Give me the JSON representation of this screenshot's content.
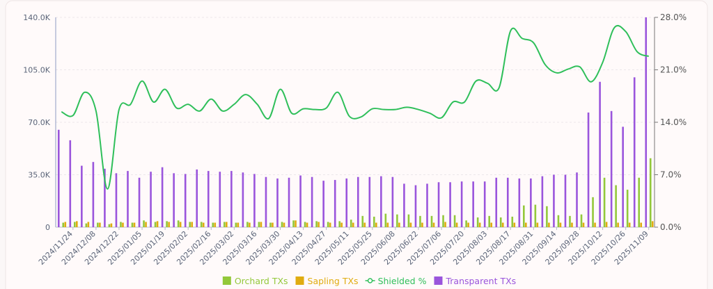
{
  "chart_data": {
    "type": "combo",
    "categories": [
      null,
      "2024/11/24",
      null,
      "2024/12/08",
      null,
      "2024/12/22",
      null,
      "2025/01/05",
      null,
      "2025/01/19",
      null,
      "2025/02/02",
      null,
      "2025/02/16",
      null,
      "2025/03/02",
      null,
      "2025/03/16",
      null,
      "2025/03/30",
      null,
      "2025/04/13",
      null,
      "2025/04/27",
      null,
      "2025/05/11",
      null,
      "2025/05/25",
      null,
      "2025/06/08",
      null,
      "2025/06/22",
      null,
      "2025/07/06",
      null,
      "2025/07/20",
      null,
      "2025/08/03",
      null,
      "2025/08/17",
      null,
      "2025/08/31",
      null,
      "2025/09/14",
      null,
      "2025/09/28",
      null,
      "2025/10/12",
      null,
      "2025/10/26",
      null,
      "2025/11/09"
    ],
    "series": [
      {
        "name": "Orchard TXs",
        "type": "bar",
        "color": "#93c83a",
        "values": [
          3000,
          3500,
          2500,
          3000,
          2000,
          3500,
          3000,
          4500,
          3500,
          4000,
          4500,
          3500,
          3500,
          3000,
          3500,
          3000,
          3500,
          3500,
          3000,
          3500,
          4500,
          3500,
          4000,
          3500,
          4000,
          5000,
          7500,
          7000,
          9000,
          8500,
          8500,
          7500,
          7500,
          8000,
          8000,
          4500,
          6500,
          7500,
          6500,
          7000,
          14500,
          15000,
          14000,
          8000,
          7500,
          8500,
          20000,
          33000,
          28000,
          25000,
          33000,
          46000
        ]
      },
      {
        "name": "Sapling TXs",
        "type": "bar",
        "color": "#e0ac10",
        "values": [
          3500,
          4000,
          3500,
          3000,
          2500,
          3000,
          3000,
          3500,
          4000,
          3500,
          3500,
          3500,
          3000,
          3000,
          3500,
          3000,
          3000,
          3500,
          3000,
          3000,
          4500,
          3000,
          3500,
          3000,
          3000,
          3000,
          3000,
          3000,
          3000,
          3000,
          3000,
          3000,
          3000,
          3500,
          3000,
          3000,
          3000,
          3000,
          3000,
          3000,
          3000,
          3000,
          3000,
          3000,
          3000,
          3000,
          3000,
          3500,
          3000,
          3000,
          3000,
          4000
        ]
      },
      {
        "name": "Shielded %",
        "type": "line",
        "axis": "y2",
        "color": "#2fbf5a",
        "values": [
          15.4,
          14.9,
          18,
          15.5,
          5.1,
          15.7,
          16.4,
          19.5,
          16.7,
          18.4,
          15.9,
          16.4,
          15.5,
          17.1,
          15.5,
          16.4,
          17.7,
          16.4,
          14.5,
          18.4,
          15.2,
          15.8,
          15.7,
          15.9,
          18,
          14.8,
          14.7,
          15.8,
          15.7,
          15.7,
          16,
          15.7,
          15.2,
          14.6,
          16.7,
          16.7,
          19.5,
          19.2,
          18.6,
          26.2,
          25.2,
          24.6,
          21.7,
          20.6,
          21.1,
          21.4,
          19.4,
          22,
          26.6,
          26.1,
          23.4,
          22.8
        ]
      },
      {
        "name": "Transparent TXs",
        "type": "bar",
        "color": "#9a55dc",
        "values": [
          65000,
          58000,
          41000,
          43500,
          39000,
          36000,
          37500,
          33000,
          37000,
          40000,
          36000,
          35500,
          38500,
          37500,
          37000,
          37500,
          36500,
          35500,
          33500,
          32500,
          33000,
          34500,
          33500,
          31000,
          31500,
          32500,
          33500,
          33500,
          34000,
          33500,
          29000,
          28000,
          29000,
          30000,
          30000,
          30500,
          30500,
          30500,
          33000,
          33000,
          32500,
          32500,
          34000,
          35000,
          35000,
          36500,
          76500,
          97000,
          77500,
          67000,
          100000,
          140000
        ]
      }
    ],
    "ylim": [
      0,
      140000
    ],
    "yticks": [
      0,
      {
        "value": 35000,
        "label": "35.0K"
      },
      {
        "value": 70000,
        "label": "70.0K"
      },
      {
        "value": 105000,
        "label": "105.0K"
      },
      {
        "value": 140000,
        "label": "140.0K"
      }
    ],
    "y2lim": [
      0,
      28
    ],
    "y2ticks": [
      {
        "value": 0,
        "label": "0.0%"
      },
      {
        "value": 7,
        "label": "7.0%"
      },
      {
        "value": 14,
        "label": "14.0%"
      },
      {
        "value": 21,
        "label": "21.0%"
      },
      {
        "value": 28,
        "label": "28.0%"
      }
    ],
    "grid": true,
    "legend": "bottom"
  }
}
